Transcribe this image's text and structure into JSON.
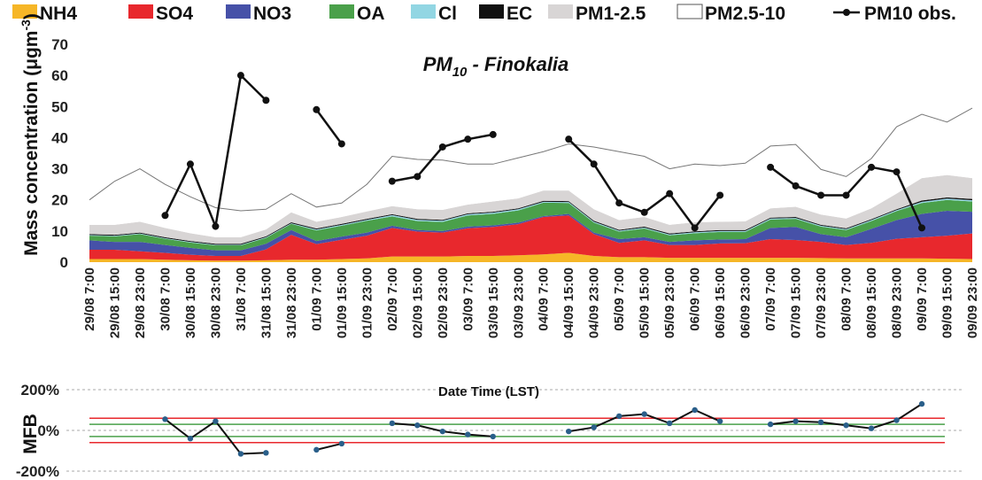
{
  "colors": {
    "NH4": "#f6b627",
    "SO4": "#e8282d",
    "NO3": "#4651a8",
    "OA": "#4aa04a",
    "Cl": "#92d6e3",
    "EC": "#111111",
    "PM1_2_5": "#d8d5d5",
    "PM2_5_10": "#ffffff",
    "obs": "#111111",
    "mfb_red": "#e8282d",
    "mfb_green": "#4aa04a",
    "mfb_grid": "#aaaaaa"
  },
  "chart_data": [
    {
      "type": "area",
      "title_main": "PM",
      "title_sub": "10",
      "title_rest": " - Finokalia",
      "xlabel": "",
      "ylabel_text": "Mass concentration (μgm",
      "ylabel_sup": "-3",
      "ylabel_end": ")",
      "ylim": [
        0,
        70
      ],
      "yticks": [
        "0",
        "10",
        "20",
        "30",
        "40",
        "50",
        "60",
        "70"
      ],
      "x_tick_labels": [
        "29/08 7:00",
        "29/08 15:00",
        "29/08 23:00",
        "30/08 7:00",
        "30/08 15:00",
        "30/08 23:00",
        "31/08 7:00",
        "31/08 15:00",
        "31/08 23:00",
        "01/09 7:00",
        "01/09 15:00",
        "01/09 23:00",
        "02/09 7:00",
        "02/09 15:00",
        "02/09 23:00",
        "03/09 7:00",
        "03/09 15:00",
        "03/09 23:00",
        "04/09 7:00",
        "04/09 15:00",
        "04/09 23:00",
        "05/09 7:00",
        "05/09 15:00",
        "05/09 23:00",
        "06/09 7:00",
        "06/09 15:00",
        "06/09 23:00",
        "07/09 7:00",
        "07/09 15:00",
        "07/09 23:00",
        "08/09 7:00",
        "08/09 15:00",
        "08/09 23:00",
        "09/09 7:00",
        "09/09 15:00",
        "09/09 23:00"
      ],
      "legend": [
        {
          "key": "NH4",
          "label": "NH4"
        },
        {
          "key": "SO4",
          "label": "SO4"
        },
        {
          "key": "NO3",
          "label": "NO3"
        },
        {
          "key": "OA",
          "label": "OA"
        },
        {
          "key": "Cl",
          "label": "Cl"
        },
        {
          "key": "EC",
          "label": "EC"
        },
        {
          "key": "PM1_2_5",
          "label": "PM1-2.5"
        },
        {
          "key": "PM2_5_10",
          "label": "PM2.5-10"
        },
        {
          "key": "obs",
          "label": "PM10 obs."
        }
      ],
      "stacked_series": [
        {
          "key": "NH4",
          "name": "NH4",
          "values": [
            1.0,
            1.0,
            1.0,
            0.8,
            0.6,
            0.5,
            0.5,
            0.6,
            0.8,
            0.8,
            1.0,
            1.2,
            1.8,
            1.8,
            1.8,
            2.0,
            2.0,
            2.2,
            2.5,
            3.0,
            2.0,
            1.6,
            1.6,
            1.4,
            1.4,
            1.4,
            1.4,
            1.4,
            1.4,
            1.3,
            1.2,
            1.2,
            1.2,
            1.2,
            1.1,
            1.0
          ]
        },
        {
          "key": "SO4",
          "name": "SO4",
          "values": [
            3.0,
            3.0,
            2.5,
            2.2,
            1.8,
            1.5,
            1.5,
            3.5,
            8.0,
            5.0,
            6.2,
            7.3,
            9.2,
            8.0,
            7.7,
            8.9,
            9.3,
            10.0,
            12.0,
            12.0,
            7.0,
            4.6,
            5.4,
            4.1,
            4.1,
            4.6,
            4.7,
            6.0,
            5.7,
            5.2,
            4.3,
            5.0,
            6.3,
            6.8,
            7.4,
            8.2
          ]
        },
        {
          "key": "NO3",
          "name": "NO3",
          "values": [
            3.0,
            2.5,
            3.0,
            2.5,
            2.2,
            1.8,
            1.8,
            1.8,
            1.5,
            1.0,
            1.0,
            1.0,
            0.7,
            0.5,
            0.5,
            0.5,
            0.5,
            0.5,
            0.3,
            0.5,
            0.5,
            1.2,
            1.0,
            1.0,
            1.5,
            1.3,
            1.3,
            3.6,
            4.2,
            2.5,
            2.5,
            4.5,
            6.0,
            7.5,
            8.0,
            7.0
          ]
        },
        {
          "key": "OA",
          "name": "OA",
          "values": [
            1.5,
            1.8,
            2.5,
            2.0,
            1.7,
            1.6,
            1.6,
            1.9,
            2.0,
            3.4,
            3.5,
            3.8,
            3.0,
            2.9,
            2.9,
            3.6,
            3.7,
            3.9,
            4.3,
            3.5,
            3.2,
            2.4,
            2.8,
            2.1,
            2.3,
            2.4,
            2.3,
            2.7,
            2.6,
            2.4,
            2.3,
            2.5,
            2.9,
            3.5,
            3.5,
            3.3
          ]
        },
        {
          "key": "Cl",
          "name": "Cl",
          "values": [
            0.2,
            0.2,
            0.2,
            0.2,
            0.2,
            0.2,
            0.2,
            0.2,
            0.2,
            0.3,
            0.3,
            0.3,
            0.4,
            0.4,
            0.4,
            0.4,
            0.4,
            0.4,
            0.3,
            0.3,
            0.3,
            0.3,
            0.3,
            0.3,
            0.3,
            0.3,
            0.3,
            0.3,
            0.3,
            0.3,
            0.3,
            0.3,
            0.3,
            0.4,
            0.4,
            0.4
          ]
        },
        {
          "key": "EC",
          "name": "EC",
          "values": [
            0.3,
            0.3,
            0.3,
            0.3,
            0.3,
            0.3,
            0.3,
            0.3,
            0.3,
            0.3,
            0.3,
            0.3,
            0.3,
            0.3,
            0.3,
            0.3,
            0.3,
            0.3,
            0.3,
            0.3,
            0.3,
            0.3,
            0.3,
            0.3,
            0.3,
            0.3,
            0.3,
            0.3,
            0.3,
            0.3,
            0.3,
            0.3,
            0.3,
            0.4,
            0.4,
            0.4
          ]
        },
        {
          "key": "PM1_2_5",
          "name": "PM1-2.5",
          "values": [
            3.0,
            3.2,
            3.5,
            3.0,
            2.5,
            2.1,
            2.1,
            2.2,
            3.2,
            2.2,
            2.2,
            2.4,
            2.6,
            3.1,
            3.2,
            2.8,
            3.3,
            3.2,
            3.3,
            3.4,
            3.7,
            3.1,
            3.1,
            2.8,
            2.9,
            2.7,
            2.8,
            3.0,
            3.3,
            3.3,
            3.1,
            3.5,
            5.0,
            7.2,
            7.2,
            6.7
          ]
        },
        {
          "key": "PM2_5_10",
          "name": "PM2.5-10",
          "values": [
            8.0,
            14.0,
            17.0,
            14.0,
            11.7,
            9.5,
            8.5,
            6.5,
            6.0,
            4.7,
            4.5,
            8.7,
            16.0,
            16.0,
            16.0,
            13.0,
            12.0,
            13.0,
            12.5,
            15.0,
            20.0,
            22.0,
            19.5,
            18.0,
            18.7,
            18.0,
            18.7,
            20.0,
            20.0,
            14.5,
            13.5,
            16.0,
            21.5,
            20.5,
            17.0,
            22.5
          ]
        }
      ],
      "observations": {
        "name": "PM10 obs.",
        "segments": [
          [
            {
              "x": 3,
              "y": 15
            },
            {
              "x": 4,
              "y": 31.5
            },
            {
              "x": 5,
              "y": 11.5
            },
            {
              "x": 6,
              "y": 60
            },
            {
              "x": 7,
              "y": 52
            }
          ],
          [
            {
              "x": 9,
              "y": 49
            },
            {
              "x": 10,
              "y": 38
            }
          ],
          [
            {
              "x": 12,
              "y": 26
            },
            {
              "x": 13,
              "y": 27.5
            },
            {
              "x": 14,
              "y": 37
            },
            {
              "x": 15,
              "y": 39.5
            },
            {
              "x": 16,
              "y": 41
            }
          ],
          [
            {
              "x": 19,
              "y": 39.5
            },
            {
              "x": 20,
              "y": 31.5
            },
            {
              "x": 21,
              "y": 19
            },
            {
              "x": 22,
              "y": 16
            },
            {
              "x": 23,
              "y": 22
            },
            {
              "x": 24,
              "y": 11
            },
            {
              "x": 25,
              "y": 21.5
            }
          ],
          [
            {
              "x": 27,
              "y": 30.5
            },
            {
              "x": 28,
              "y": 24.5
            },
            {
              "x": 29,
              "y": 21.5
            },
            {
              "x": 30,
              "y": 21.5
            },
            {
              "x": 31,
              "y": 30.5
            },
            {
              "x": 32,
              "y": 29
            },
            {
              "x": 33,
              "y": 11
            }
          ]
        ]
      }
    },
    {
      "type": "line",
      "title": "Date Time (LST)",
      "ylabel": "MFB",
      "ylim": [
        -200,
        200
      ],
      "yticks": [
        "-200%",
        "0%",
        "200%"
      ],
      "reference_lines": {
        "red": [
          60,
          -60
        ],
        "green": [
          30,
          -30
        ]
      },
      "series": [
        {
          "name": "MFB",
          "segments": [
            [
              {
                "x": 3,
                "y": 55
              },
              {
                "x": 4,
                "y": -40
              },
              {
                "x": 5,
                "y": 45
              },
              {
                "x": 6,
                "y": -115
              },
              {
                "x": 7,
                "y": -110
              }
            ],
            [
              {
                "x": 9,
                "y": -95
              },
              {
                "x": 10,
                "y": -65
              }
            ],
            [
              {
                "x": 12,
                "y": 35
              },
              {
                "x": 13,
                "y": 25
              },
              {
                "x": 14,
                "y": -5
              },
              {
                "x": 15,
                "y": -20
              },
              {
                "x": 16,
                "y": -30
              }
            ],
            [
              {
                "x": 19,
                "y": -5
              },
              {
                "x": 20,
                "y": 15
              },
              {
                "x": 21,
                "y": 70
              },
              {
                "x": 22,
                "y": 80
              },
              {
                "x": 23,
                "y": 35
              },
              {
                "x": 24,
                "y": 100
              },
              {
                "x": 25,
                "y": 45
              }
            ],
            [
              {
                "x": 27,
                "y": 30
              },
              {
                "x": 28,
                "y": 45
              },
              {
                "x": 29,
                "y": 40
              },
              {
                "x": 30,
                "y": 25
              },
              {
                "x": 31,
                "y": 10
              },
              {
                "x": 32,
                "y": 50
              },
              {
                "x": 33,
                "y": 130
              }
            ]
          ]
        }
      ]
    }
  ]
}
